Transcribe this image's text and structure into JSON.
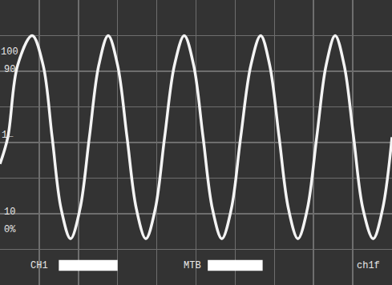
{
  "chart_data": {
    "type": "line",
    "color": "#f4f4f4",
    "grid": true,
    "tick_labels": false,
    "xlim": [
      0,
      10
    ],
    "xticks": [
      0,
      1,
      2,
      3,
      4,
      5,
      6,
      7,
      8,
      9,
      10
    ],
    "ylim": [
      -4,
      4
    ],
    "yticks": [
      -4,
      -3,
      -2,
      -1,
      0,
      1,
      2,
      3,
      4
    ],
    "x": [
      0.0,
      0.2,
      0.45,
      0.82,
      1.1,
      1.33,
      1.56,
      1.8,
      2.04,
      2.28,
      2.52,
      2.76,
      3.0,
      3.24,
      3.48,
      3.72,
      3.96,
      4.2,
      4.45,
      4.7,
      4.94,
      5.18,
      5.42,
      5.66,
      5.9,
      6.14,
      6.4,
      6.65,
      6.88,
      7.12,
      7.36,
      7.6,
      7.84,
      8.08,
      8.32,
      8.55,
      8.78,
      9.02,
      9.26,
      9.52,
      9.76,
      10.0
    ],
    "values": [
      -0.6,
      0.15,
      2.17,
      3.0,
      2.17,
      0.15,
      -1.87,
      -2.7,
      -1.87,
      0.15,
      2.17,
      3.0,
      2.17,
      0.15,
      -1.87,
      -2.7,
      -1.87,
      0.15,
      2.17,
      3.0,
      2.17,
      0.15,
      -1.87,
      -2.7,
      -1.87,
      0.15,
      2.17,
      3.0,
      2.17,
      0.15,
      -1.87,
      -2.7,
      -1.87,
      0.15,
      2.17,
      3.0,
      2.17,
      0.15,
      -1.87,
      -2.7,
      -1.87,
      0.15
    ],
    "annotations": [
      {
        "text": "100",
        "x": 0.25,
        "y": 2.55
      },
      {
        "text": "90",
        "x": 0.25,
        "y": 2.05
      },
      {
        "text": "1←",
        "x": 0.2,
        "y": 0.2
      },
      {
        "text": "10",
        "x": 0.25,
        "y": -1.95
      },
      {
        "text": "0%",
        "x": 0.25,
        "y": -2.45
      },
      {
        "text": "CH1",
        "x": 1.0,
        "y": -3.45
      },
      {
        "text": "MTB",
        "x": 4.9,
        "y": -3.45
      },
      {
        "text": "ch1f",
        "x": 9.4,
        "y": -3.45
      }
    ]
  }
}
